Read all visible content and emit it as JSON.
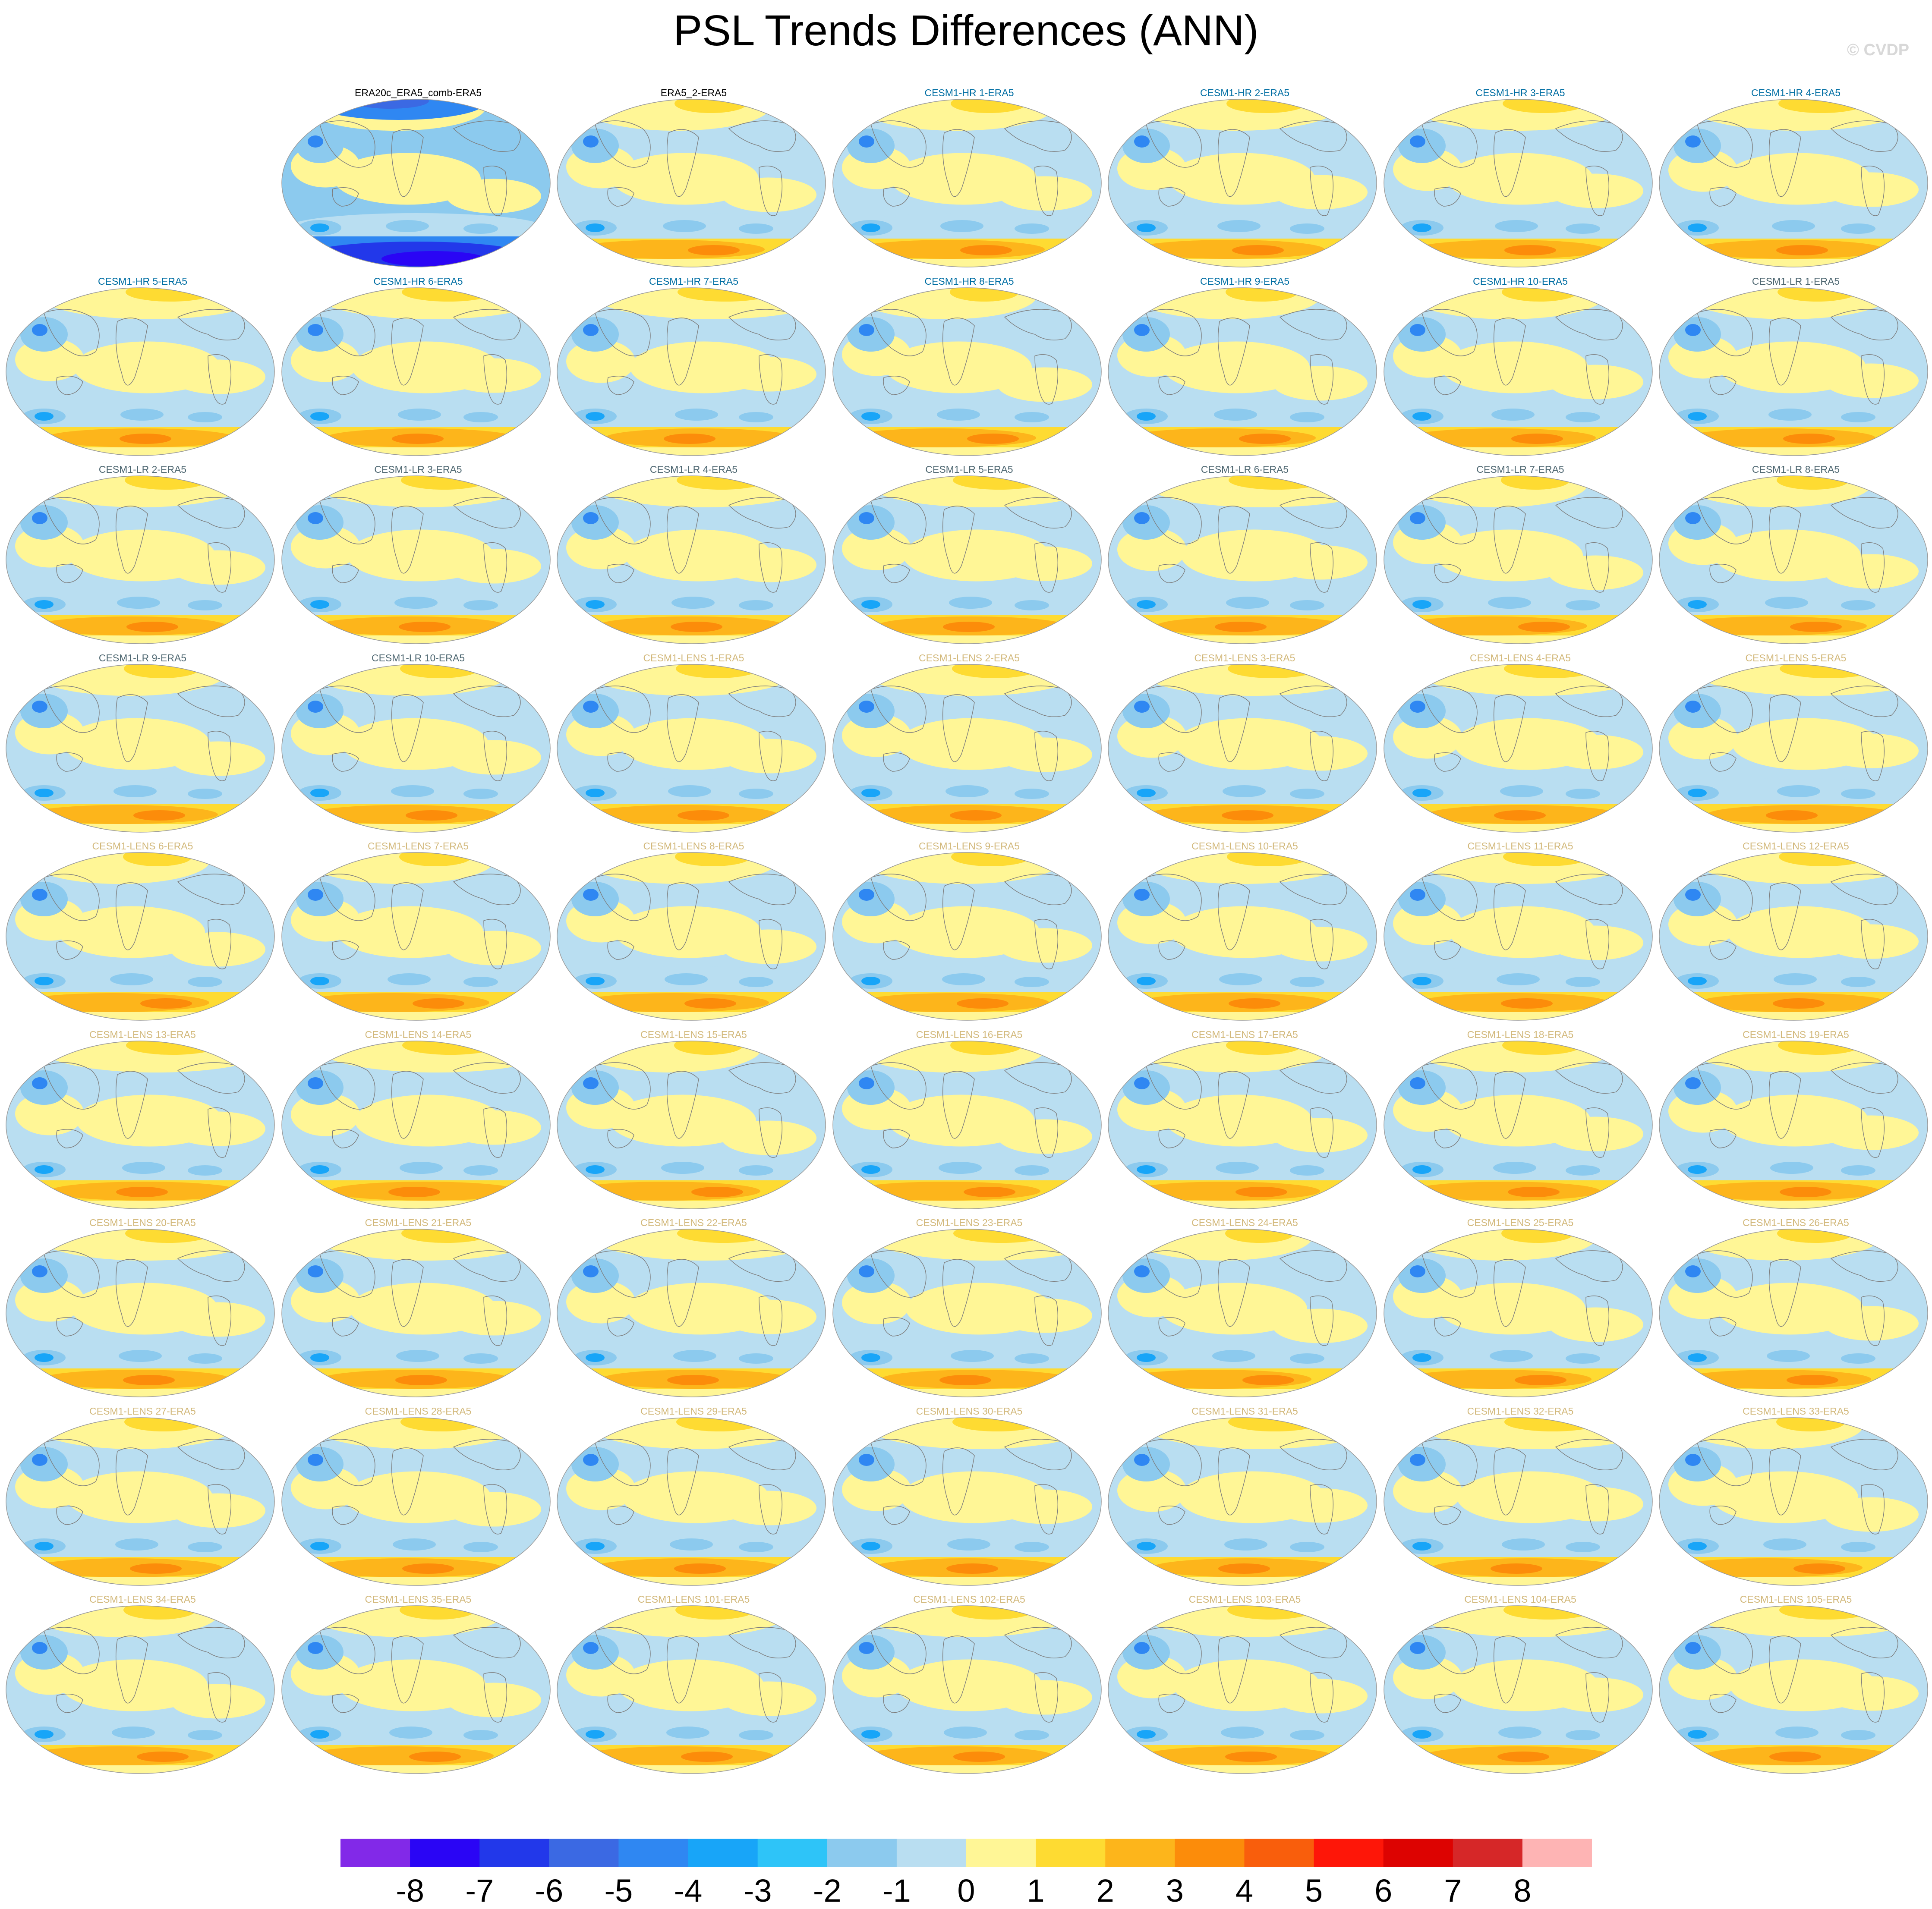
{
  "title": "PSL Trends Differences (ANN)",
  "watermark": "© CVDP",
  "colors": {
    "label_obs": "#000000",
    "label_hr": "#006ea3",
    "label_lr": "#4d6670",
    "label_lens": "#d2b87a",
    "coastline": "#7d7d7d"
  },
  "chart_data": {
    "type": "heatmap",
    "projection": "global map (ellipse / Robinson-style)",
    "field": "PSL trend difference",
    "season": "ANN",
    "layout": "9 rows x 7 columns, first cell empty",
    "colorbar": {
      "ticks": [
        "-8",
        "-7",
        "-6",
        "-5",
        "-4",
        "-3",
        "-2",
        "-1",
        "0",
        "1",
        "2",
        "3",
        "4",
        "5",
        "6",
        "7",
        "8"
      ],
      "colors": [
        "#8229e8",
        "#2a05f5",
        "#2238ea",
        "#3b69e3",
        "#2f87f2",
        "#18a5f8",
        "#2ec4f8",
        "#8ccaee",
        "#b9def1",
        "#fff696",
        "#fedb32",
        "#fdb51b",
        "#fc8c0a",
        "#f95e0c",
        "#fe1608",
        "#dd0301",
        "#d62728",
        "#feb4b4"
      ]
    },
    "panels": [
      {
        "label": "ERA20c_ERA5_comb-ERA5",
        "group": "obs"
      },
      {
        "label": "ERA5_2-ERA5",
        "group": "obs"
      },
      {
        "label": "CESM1-HR 1-ERA5",
        "group": "hr"
      },
      {
        "label": "CESM1-HR 2-ERA5",
        "group": "hr"
      },
      {
        "label": "CESM1-HR 3-ERA5",
        "group": "hr"
      },
      {
        "label": "CESM1-HR 4-ERA5",
        "group": "hr"
      },
      {
        "label": "CESM1-HR 5-ERA5",
        "group": "hr"
      },
      {
        "label": "CESM1-HR 6-ERA5",
        "group": "hr"
      },
      {
        "label": "CESM1-HR 7-ERA5",
        "group": "hr"
      },
      {
        "label": "CESM1-HR 8-ERA5",
        "group": "hr"
      },
      {
        "label": "CESM1-HR 9-ERA5",
        "group": "hr"
      },
      {
        "label": "CESM1-HR 10-ERA5",
        "group": "hr"
      },
      {
        "label": "CESM1-LR 1-ERA5",
        "group": "lr"
      },
      {
        "label": "CESM1-LR 2-ERA5",
        "group": "lr"
      },
      {
        "label": "CESM1-LR 3-ERA5",
        "group": "lr"
      },
      {
        "label": "CESM1-LR 4-ERA5",
        "group": "lr"
      },
      {
        "label": "CESM1-LR 5-ERA5",
        "group": "lr"
      },
      {
        "label": "CESM1-LR 6-ERA5",
        "group": "lr"
      },
      {
        "label": "CESM1-LR 7-ERA5",
        "group": "lr"
      },
      {
        "label": "CESM1-LR 8-ERA5",
        "group": "lr"
      },
      {
        "label": "CESM1-LR 9-ERA5",
        "group": "lr"
      },
      {
        "label": "CESM1-LR 10-ERA5",
        "group": "lr"
      },
      {
        "label": "CESM1-LENS 1-ERA5",
        "group": "lens"
      },
      {
        "label": "CESM1-LENS 2-ERA5",
        "group": "lens"
      },
      {
        "label": "CESM1-LENS 3-ERA5",
        "group": "lens"
      },
      {
        "label": "CESM1-LENS 4-ERA5",
        "group": "lens"
      },
      {
        "label": "CESM1-LENS 5-ERA5",
        "group": "lens"
      },
      {
        "label": "CESM1-LENS 6-ERA5",
        "group": "lens"
      },
      {
        "label": "CESM1-LENS 7-ERA5",
        "group": "lens"
      },
      {
        "label": "CESM1-LENS 8-ERA5",
        "group": "lens"
      },
      {
        "label": "CESM1-LENS 9-ERA5",
        "group": "lens"
      },
      {
        "label": "CESM1-LENS 10-ERA5",
        "group": "lens"
      },
      {
        "label": "CESM1-LENS 11-ERA5",
        "group": "lens"
      },
      {
        "label": "CESM1-LENS 12-ERA5",
        "group": "lens"
      },
      {
        "label": "CESM1-LENS 13-ERA5",
        "group": "lens"
      },
      {
        "label": "CESM1-LENS 14-ERA5",
        "group": "lens"
      },
      {
        "label": "CESM1-LENS 15-ERA5",
        "group": "lens"
      },
      {
        "label": "CESM1-LENS 16-ERA5",
        "group": "lens"
      },
      {
        "label": "CESM1-LENS 17-ERA5",
        "group": "lens"
      },
      {
        "label": "CESM1-LENS 18-ERA5",
        "group": "lens"
      },
      {
        "label": "CESM1-LENS 19-ERA5",
        "group": "lens"
      },
      {
        "label": "CESM1-LENS 20-ERA5",
        "group": "lens"
      },
      {
        "label": "CESM1-LENS 21-ERA5",
        "group": "lens"
      },
      {
        "label": "CESM1-LENS 22-ERA5",
        "group": "lens"
      },
      {
        "label": "CESM1-LENS 23-ERA5",
        "group": "lens"
      },
      {
        "label": "CESM1-LENS 24-ERA5",
        "group": "lens"
      },
      {
        "label": "CESM1-LENS 25-ERA5",
        "group": "lens"
      },
      {
        "label": "CESM1-LENS 26-ERA5",
        "group": "lens"
      },
      {
        "label": "CESM1-LENS 27-ERA5",
        "group": "lens"
      },
      {
        "label": "CESM1-LENS 28-ERA5",
        "group": "lens"
      },
      {
        "label": "CESM1-LENS 29-ERA5",
        "group": "lens"
      },
      {
        "label": "CESM1-LENS 30-ERA5",
        "group": "lens"
      },
      {
        "label": "CESM1-LENS 31-ERA5",
        "group": "lens"
      },
      {
        "label": "CESM1-LENS 32-ERA5",
        "group": "lens"
      },
      {
        "label": "CESM1-LENS 33-ERA5",
        "group": "lens"
      },
      {
        "label": "CESM1-LENS 34-ERA5",
        "group": "lens"
      },
      {
        "label": "CESM1-LENS 35-ERA5",
        "group": "lens"
      },
      {
        "label": "CESM1-LENS 101-ERA5",
        "group": "lens"
      },
      {
        "label": "CESM1-LENS 102-ERA5",
        "group": "lens"
      },
      {
        "label": "CESM1-LENS 103-ERA5",
        "group": "lens"
      },
      {
        "label": "CESM1-LENS 104-ERA5",
        "group": "lens"
      },
      {
        "label": "CESM1-LENS 105-ERA5",
        "group": "lens"
      }
    ]
  }
}
